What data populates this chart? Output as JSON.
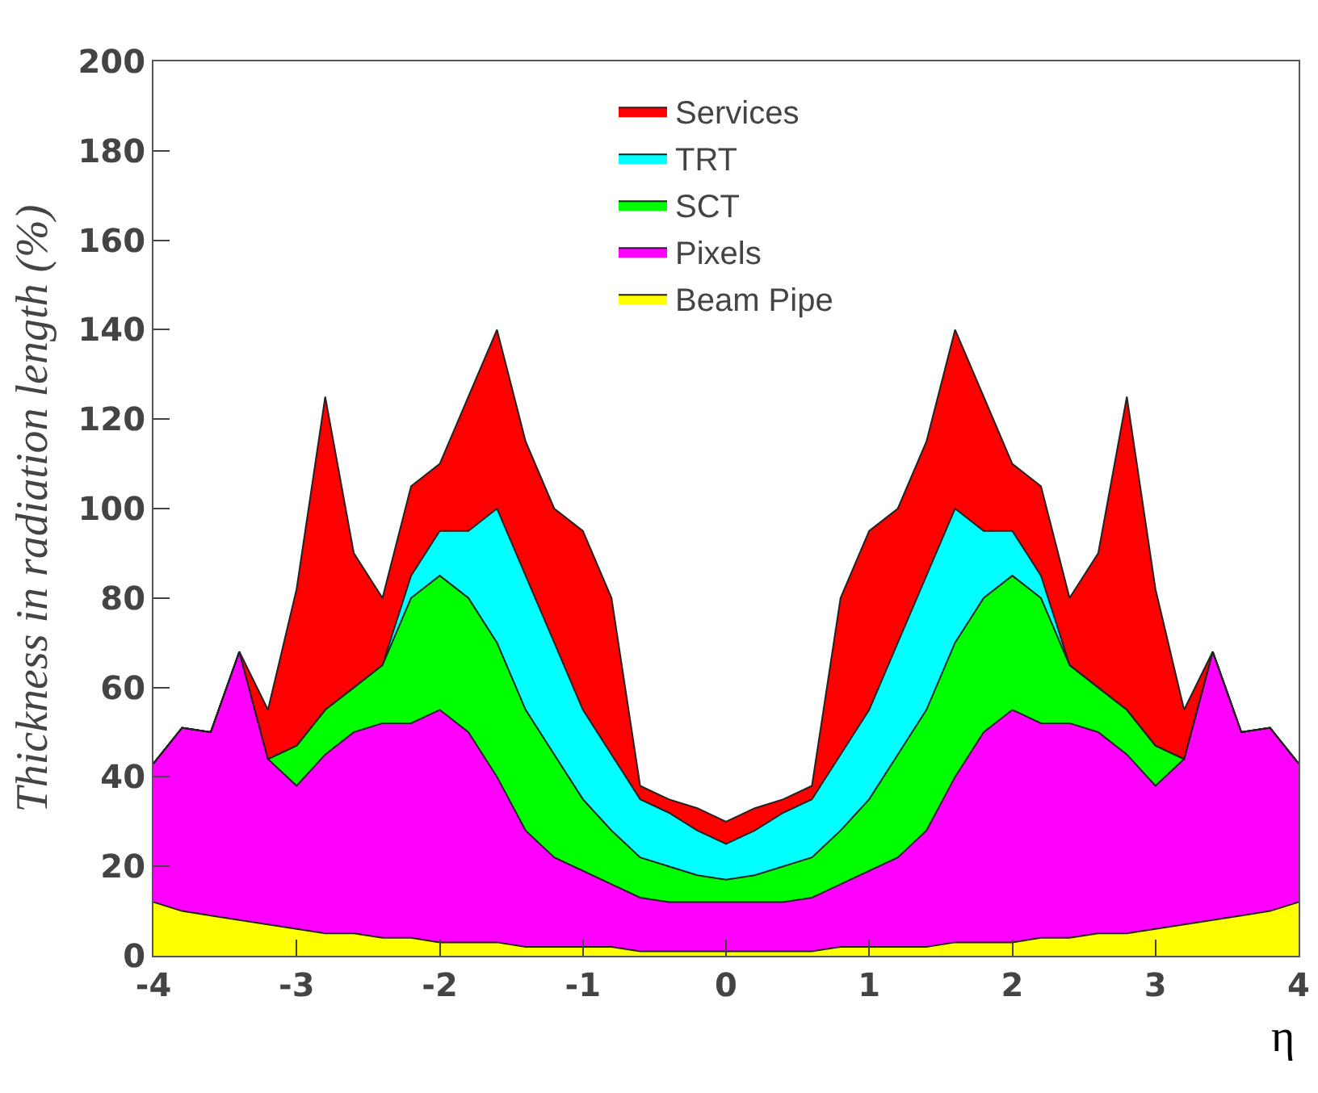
{
  "chart_data": {
    "type": "area",
    "stacked": true,
    "xlabel": "η",
    "ylabel": "Thickness in radiation length (%)",
    "x": [
      -4,
      -3.8,
      -3.6,
      -3.4,
      -3.2,
      -3,
      -2.8,
      -2.6,
      -2.4,
      -2.2,
      -2,
      -1.8,
      -1.6,
      -1.4,
      -1.2,
      -1,
      -0.8,
      -0.6,
      -0.4,
      -0.2,
      0,
      0.2,
      0.4,
      0.6,
      0.8,
      1,
      1.2,
      1.4,
      1.6,
      1.8,
      2,
      2.2,
      2.4,
      2.6,
      2.8,
      3,
      3.2,
      3.4,
      3.6,
      3.8,
      4
    ],
    "series": [
      {
        "name": "Beam Pipe",
        "color": "#ffff00",
        "values": [
          12,
          10,
          9,
          8,
          7,
          6,
          5,
          5,
          4,
          4,
          3,
          3,
          3,
          2,
          2,
          2,
          2,
          1,
          1,
          1,
          1,
          1,
          1,
          1,
          2,
          2,
          2,
          2,
          3,
          3,
          3,
          4,
          4,
          5,
          5,
          6,
          7,
          8,
          9,
          10,
          12
        ]
      },
      {
        "name": "Pixels",
        "color": "#ff00ff",
        "values": [
          31,
          41,
          41,
          60,
          37,
          32,
          40,
          45,
          48,
          48,
          52,
          47,
          37,
          26,
          20,
          17,
          14,
          12,
          11,
          11,
          11,
          11,
          11,
          12,
          14,
          17,
          20,
          26,
          37,
          47,
          52,
          48,
          48,
          45,
          40,
          32,
          37,
          60,
          41,
          41,
          31
        ]
      },
      {
        "name": "SCT",
        "color": "#00ff00",
        "values": [
          0,
          0,
          0,
          0,
          0,
          9,
          10,
          10,
          13,
          28,
          30,
          30,
          30,
          27,
          23,
          16,
          12,
          9,
          8,
          6,
          5,
          6,
          8,
          9,
          12,
          16,
          23,
          27,
          30,
          30,
          30,
          28,
          13,
          10,
          10,
          9,
          0,
          0,
          0,
          0,
          0
        ]
      },
      {
        "name": "TRT",
        "color": "#00ffff",
        "values": [
          0,
          0,
          0,
          0,
          0,
          0,
          0,
          0,
          0,
          5,
          10,
          15,
          30,
          30,
          25,
          20,
          17,
          13,
          12,
          10,
          8,
          10,
          12,
          13,
          17,
          20,
          25,
          30,
          30,
          15,
          10,
          5,
          0,
          0,
          0,
          0,
          0,
          0,
          0,
          0,
          0
        ]
      },
      {
        "name": "Services",
        "color": "#ff0000",
        "values": [
          0,
          0,
          0,
          0,
          11,
          35,
          70,
          30,
          15,
          20,
          15,
          30,
          40,
          30,
          30,
          40,
          35,
          3,
          3,
          5,
          5,
          5,
          3,
          3,
          35,
          40,
          30,
          30,
          40,
          30,
          15,
          20,
          15,
          30,
          70,
          35,
          11,
          0,
          0,
          0,
          0
        ]
      }
    ],
    "xlim": [
      -4,
      4
    ],
    "xticks": [
      -4,
      -3,
      -2,
      -1,
      0,
      1,
      2,
      3,
      4
    ],
    "ylim": [
      0,
      200
    ],
    "yticks": [
      0,
      20,
      40,
      60,
      80,
      100,
      120,
      140,
      160,
      180,
      200
    ],
    "legend": "top",
    "grid": false
  }
}
